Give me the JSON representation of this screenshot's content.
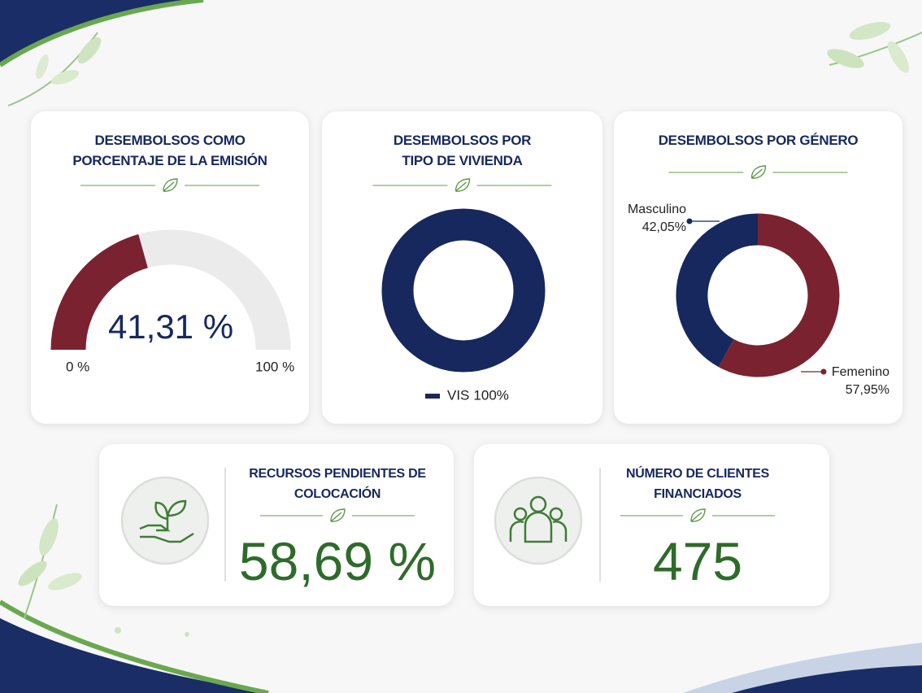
{
  "chart_data": [
    {
      "type": "gauge",
      "title": "DESEMBOLSOS COMO PORCENTAJE DE LA EMISIÓN",
      "values": [
        41.31
      ],
      "value_labels": [
        "41,31 %"
      ],
      "color": "#7a2230",
      "ylim": [
        0,
        100
      ],
      "yticks": [
        {
          "value": 0,
          "label": "0 %"
        },
        {
          "value": 100,
          "label": "100 %"
        }
      ]
    },
    {
      "type": "donut",
      "title": "DESEMBOLSOS POR TIPO DE VIVIENDA",
      "categories": [
        "VIS"
      ],
      "values": [
        100
      ],
      "value_labels": [
        "100%"
      ],
      "colors": [
        "#16285e"
      ],
      "legend": "bottom"
    },
    {
      "type": "donut",
      "title": "DESEMBOLSOS POR GÉNERO",
      "categories": [
        "Masculino",
        "Femenino"
      ],
      "values": [
        42.05,
        57.95
      ],
      "value_labels": [
        "42,05%",
        "57,95%"
      ],
      "colors": [
        "#16285e",
        "#7a2230"
      ]
    }
  ],
  "kpis": [
    {
      "title": "RECURSOS PENDIENTES DE COLOCACIÓN",
      "value": "58,69 %"
    },
    {
      "title": "NÚMERO DE CLIENTES FINANCIADOS",
      "value": 475
    }
  ]
}
